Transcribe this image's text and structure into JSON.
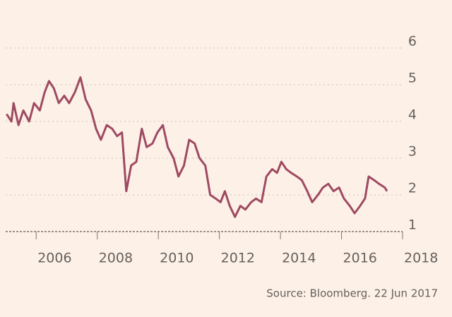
{
  "chart_data": {
    "type": "line",
    "x": [
      2005.03,
      2005.19,
      2005.26,
      2005.42,
      2005.58,
      2005.77,
      2005.93,
      2006.12,
      2006.28,
      2006.42,
      2006.58,
      2006.74,
      2006.92,
      2007.08,
      2007.27,
      2007.45,
      2007.62,
      2007.8,
      2007.96,
      2008.12,
      2008.31,
      2008.49,
      2008.65,
      2008.81,
      2008.95,
      2009.11,
      2009.28,
      2009.46,
      2009.62,
      2009.81,
      2009.97,
      2010.15,
      2010.31,
      2010.5,
      2010.66,
      2010.84,
      2011.01,
      2011.19,
      2011.35,
      2011.54,
      2011.7,
      2011.88,
      2012.04,
      2012.18,
      2012.34,
      2012.51,
      2012.69,
      2012.85,
      2013.04,
      2013.2,
      2013.38,
      2013.54,
      2013.73,
      2013.89,
      2014.03,
      2014.19,
      2014.35,
      2014.54,
      2014.7,
      2014.88,
      2015.04,
      2015.23,
      2015.39,
      2015.57,
      2015.74,
      2015.92,
      2016.08,
      2016.27,
      2016.43,
      2016.61,
      2016.77,
      2016.89,
      2017.07,
      2017.23,
      2017.42,
      2017.49
    ],
    "series": [
      {
        "color": "#9e4a62",
        "values": [
          4.2,
          4.0,
          4.5,
          3.9,
          4.3,
          4.0,
          4.5,
          4.3,
          4.8,
          5.1,
          4.9,
          4.5,
          4.7,
          4.5,
          4.8,
          5.2,
          4.6,
          4.3,
          3.8,
          3.5,
          3.9,
          3.8,
          3.6,
          3.7,
          2.1,
          2.8,
          2.9,
          3.8,
          3.3,
          3.4,
          3.7,
          3.9,
          3.3,
          3.0,
          2.5,
          2.8,
          3.5,
          3.4,
          3.0,
          2.8,
          2.0,
          1.9,
          1.8,
          2.1,
          1.7,
          1.4,
          1.7,
          1.6,
          1.8,
          1.9,
          1.8,
          2.5,
          2.7,
          2.6,
          2.9,
          2.7,
          2.6,
          2.5,
          2.4,
          2.1,
          1.8,
          2.0,
          2.2,
          2.3,
          2.1,
          2.2,
          1.9,
          1.7,
          1.5,
          1.7,
          1.9,
          2.5,
          2.4,
          2.3,
          2.2,
          2.1
        ]
      }
    ],
    "xlim": [
      2005,
      2018
    ],
    "xticks": [
      2006,
      2008,
      2010,
      2012,
      2014,
      2016,
      2018
    ],
    "ylim": [
      1,
      6
    ],
    "yticks": [
      1,
      2,
      3,
      4,
      5,
      6
    ],
    "grid": true,
    "source": "Source: Bloomberg. 22 Jun 2017"
  }
}
